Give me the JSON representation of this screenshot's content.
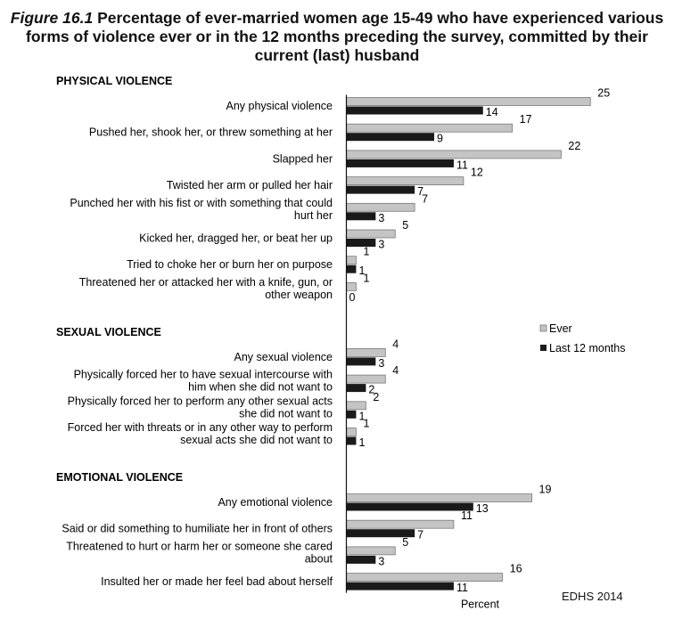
{
  "title": {
    "figure_label": "Figure 16.1",
    "text": "Percentage of ever-married women age 15-49 who have experienced various forms of violence ever or in the 12 months preceding the survey, committed by their current (last) husband"
  },
  "source": "EDHS 2014",
  "colors": {
    "ever": "#c4c4c4",
    "last12": "#1a1a1a",
    "ever_border": "#7a7a7a"
  },
  "chart_data": {
    "type": "bar",
    "orientation": "horizontal",
    "xlabel": "Percent",
    "legend_position": "right",
    "series": [
      {
        "name": "Ever",
        "key": "ever"
      },
      {
        "name": "Last 12 months",
        "key": "last12"
      }
    ],
    "groups": [
      {
        "heading": "PHYSICAL VIOLENCE",
        "items": [
          {
            "label": [
              "Any physical violence"
            ],
            "ever": 25,
            "last12": 14
          },
          {
            "label": [
              "Pushed her, shook her, or threw something at her"
            ],
            "ever": 17,
            "last12": 9
          },
          {
            "label": [
              "Slapped her"
            ],
            "ever": 22,
            "last12": 11
          },
          {
            "label": [
              "Twisted her arm or pulled her hair"
            ],
            "ever": 12,
            "last12": 7
          },
          {
            "label": [
              "Punched her with his fist or with something that could",
              "hurt her"
            ],
            "ever": 7,
            "last12": 3
          },
          {
            "label": [
              "Kicked her, dragged her, or beat her up"
            ],
            "ever": 5,
            "last12": 3
          },
          {
            "label": [
              "Tried to choke her or burn her on purpose"
            ],
            "ever": 1,
            "last12": 1
          },
          {
            "label": [
              "Threatened her or attacked her with a knife, gun, or",
              "other weapon"
            ],
            "ever": 1,
            "last12": 0
          }
        ]
      },
      {
        "heading": "SEXUAL VIOLENCE",
        "items": [
          {
            "label": [
              "Any sexual violence"
            ],
            "ever": 4,
            "last12": 3
          },
          {
            "label": [
              "Physically forced her to have sexual intercourse with",
              "him when she did not want to"
            ],
            "ever": 4,
            "last12": 2
          },
          {
            "label": [
              "Physically forced her to perform any other sexual acts",
              "she did not want to"
            ],
            "ever": 2,
            "last12": 1
          },
          {
            "label": [
              "Forced her with threats or in any other way to perform",
              "sexual acts she did not want to"
            ],
            "ever": 1,
            "last12": 1
          }
        ]
      },
      {
        "heading": "EMOTIONAL VIOLENCE",
        "items": [
          {
            "label": [
              "Any emotional violence"
            ],
            "ever": 19,
            "last12": 13
          },
          {
            "label": [
              "Said or did something to humiliate her in front of others"
            ],
            "ever": 11,
            "last12": 7
          },
          {
            "label": [
              "Threatened to hurt or harm her or someone she cared",
              "about"
            ],
            "ever": 5,
            "last12": 3
          },
          {
            "label": [
              "Insulted her or made her feel bad about herself"
            ],
            "ever": 16,
            "last12": 11
          }
        ]
      }
    ]
  }
}
